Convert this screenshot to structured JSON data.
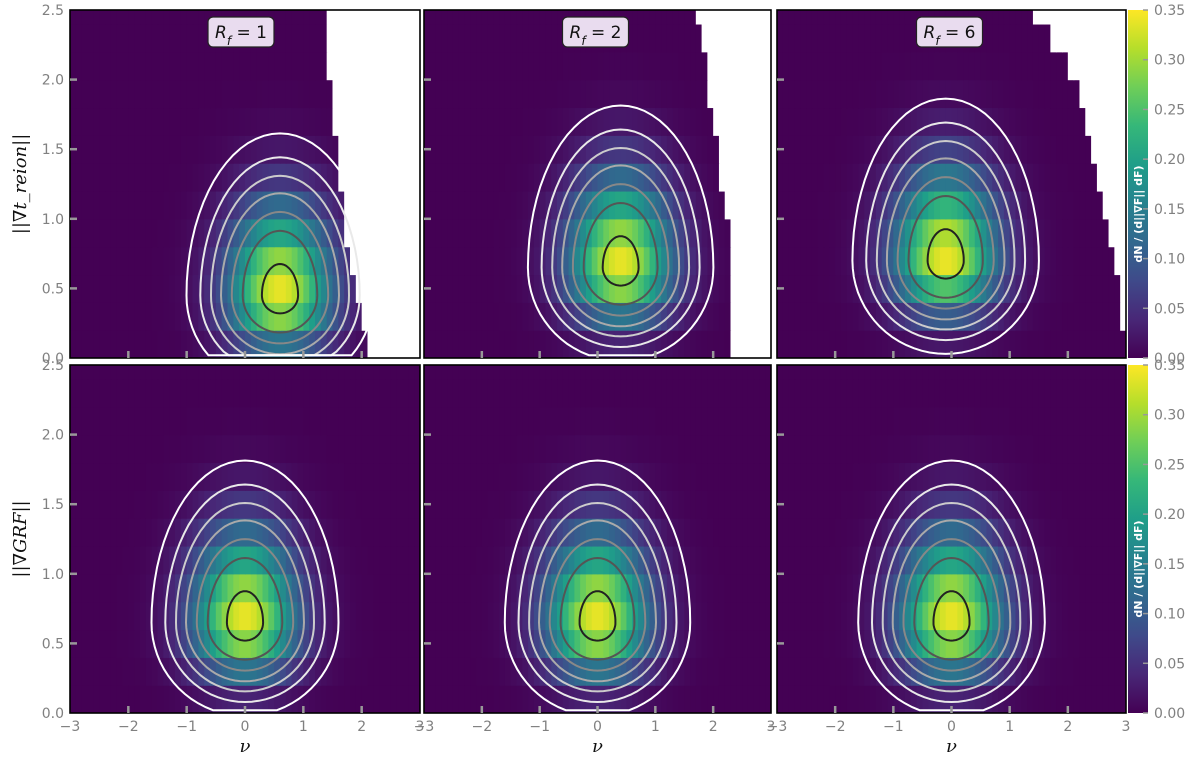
{
  "chart_data": [
    {
      "type": "heatmap",
      "panel": "top-left",
      "annotation": "R_f = 1",
      "annotation_parts": [
        "R",
        "f",
        " = 1"
      ],
      "ylabel": "||∇t_reion||",
      "ylim": [
        0,
        2.5
      ],
      "xlim": [
        -3,
        3
      ],
      "peak": {
        "x": 0.6,
        "y": 0.45
      },
      "cutoff_nu_at_y": [
        [
          0.0,
          2.1
        ],
        [
          1.0,
          1.65
        ],
        [
          2.0,
          1.4
        ],
        [
          2.5,
          1.3
        ]
      ]
    },
    {
      "type": "heatmap",
      "panel": "top-middle",
      "annotation": "R_f = 2",
      "annotation_parts": [
        "R",
        "f",
        " = 2"
      ],
      "ylim": [
        0,
        2.5
      ],
      "xlim": [
        -3,
        3
      ],
      "peak": {
        "x": 0.4,
        "y": 0.65
      },
      "cutoff_nu_at_y": [
        [
          0.0,
          2.25
        ],
        [
          1.0,
          2.2
        ],
        [
          2.0,
          1.85
        ],
        [
          2.5,
          1.65
        ]
      ]
    },
    {
      "type": "heatmap",
      "panel": "top-right",
      "annotation": "R_f = 6",
      "annotation_parts": [
        "R",
        "f",
        " = 6"
      ],
      "ylim": [
        0,
        2.5
      ],
      "xlim": [
        -3,
        3
      ],
      "peak": {
        "x": -0.1,
        "y": 0.7
      },
      "cutoff_nu_at_y": [
        [
          0.0,
          3.0
        ],
        [
          1.0,
          2.65
        ],
        [
          2.0,
          2.05
        ],
        [
          2.5,
          1.4
        ]
      ]
    },
    {
      "type": "heatmap",
      "panel": "bottom-left",
      "ylabel": "||∇GRF||",
      "xlabel": "ν",
      "ylim": [
        0,
        2.5
      ],
      "xlim": [
        -3,
        3
      ],
      "peak": {
        "x": 0.0,
        "y": 0.65
      }
    },
    {
      "type": "heatmap",
      "panel": "bottom-middle",
      "xlabel": "ν",
      "ylim": [
        0,
        2.5
      ],
      "xlim": [
        -3,
        3
      ],
      "peak": {
        "x": 0.0,
        "y": 0.65
      }
    },
    {
      "type": "heatmap",
      "panel": "bottom-right",
      "xlabel": "ν",
      "ylim": [
        0,
        2.5
      ],
      "xlim": [
        -3,
        3
      ],
      "peak": {
        "x": 0.0,
        "y": 0.65
      }
    }
  ],
  "xticks": [
    "−3",
    "−2",
    "−1",
    "0",
    "1",
    "2",
    "3"
  ],
  "yticks": [
    "0.0",
    "0.5",
    "1.0",
    "1.5",
    "2.0",
    "2.5"
  ],
  "colorbar": {
    "label": "dN / (d||∇F|| dF)",
    "range": [
      0.0,
      0.35
    ],
    "ticks": [
      "0.00",
      "0.05",
      "0.10",
      "0.15",
      "0.20",
      "0.25",
      "0.30",
      "0.35"
    ],
    "colormap": [
      "#440154",
      "#482777",
      "#3f4a8a",
      "#31688e",
      "#26828e",
      "#1f9e89",
      "#35b779",
      "#6ece58",
      "#b5de2b",
      "#fde725"
    ]
  },
  "contour_colors": [
    "#ffffff",
    "#e9e9e9",
    "#cccccc",
    "#aaaaaa",
    "#888888",
    "#555555",
    "#222222"
  ]
}
